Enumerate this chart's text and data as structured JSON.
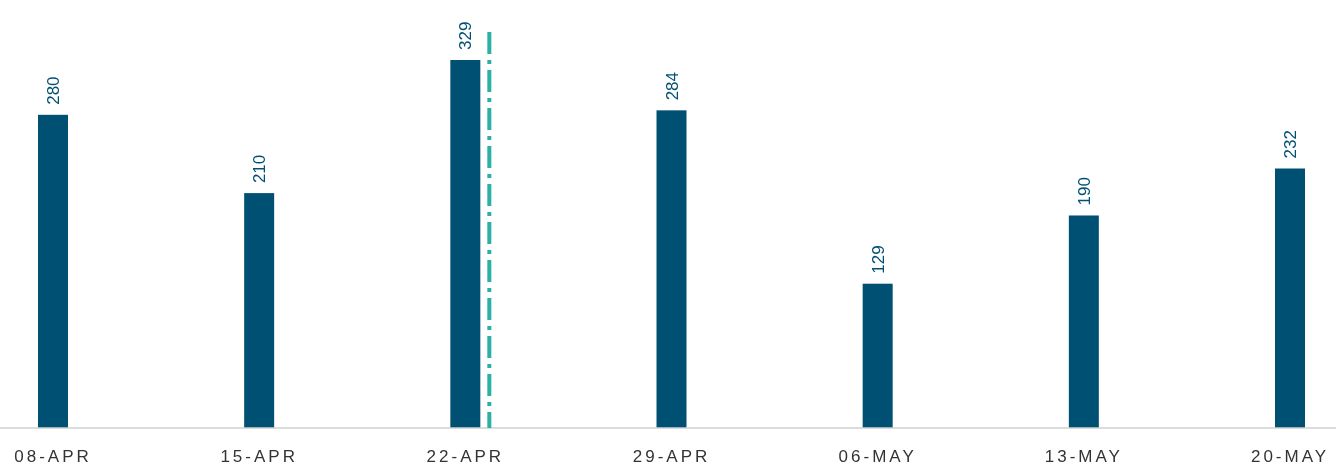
{
  "chart_data": {
    "type": "bar",
    "categories": [
      "08-APR",
      "15-APR",
      "22-APR",
      "29-APR",
      "06-MAY",
      "13-MAY",
      "20-MAY"
    ],
    "values": [
      280,
      210,
      329,
      284,
      129,
      190,
      232
    ],
    "color": "#005073",
    "data_labels": true,
    "ref_lines": [
      {
        "axis": "x",
        "value": "22-APR",
        "color": "#2ab0a5",
        "line_style": "dashed"
      }
    ]
  }
}
